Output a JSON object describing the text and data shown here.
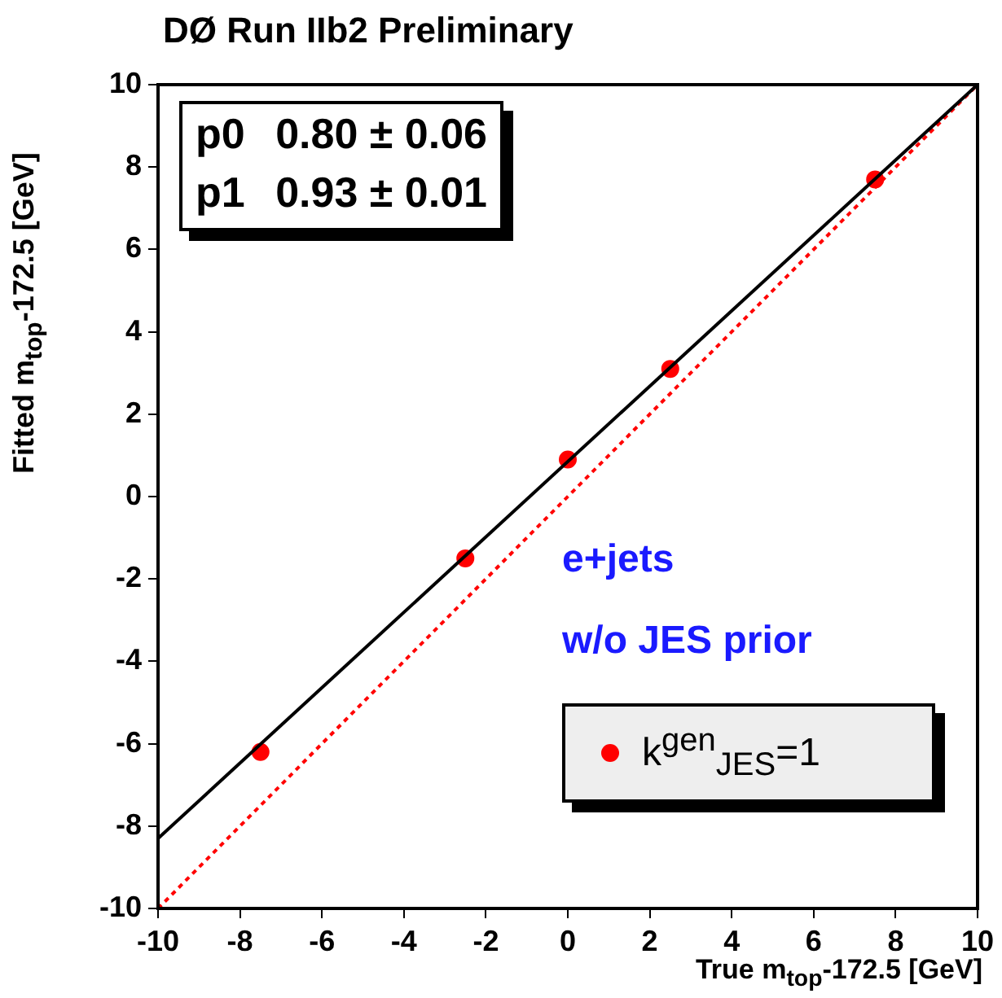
{
  "chart_data": {
    "type": "scatter",
    "title": "DØ Run IIb2 Preliminary",
    "xlabel": "True m$_{top}$-172.5 [GeV]",
    "ylabel": "Fitted m$_{top}$-172.5 [GeV]",
    "xlim": [
      -10,
      10
    ],
    "ylim": [
      -10,
      10
    ],
    "xticks": [
      -10,
      -8,
      -6,
      -4,
      -2,
      0,
      2,
      4,
      6,
      8,
      10
    ],
    "yticks": [
      -10,
      -8,
      -6,
      -4,
      -2,
      0,
      2,
      4,
      6,
      8,
      10
    ],
    "grid": false,
    "legend": "bottom right",
    "series": [
      {
        "type": "line",
        "color": "#000000",
        "x": [
          -10,
          10
        ],
        "values": [
          -8.3,
          10
        ],
        "marker": "none",
        "line_style": "solid"
      },
      {
        "type": "line",
        "color": "#ff0000",
        "x": [
          -10,
          10
        ],
        "values": [
          -10,
          10
        ],
        "marker": "none",
        "line_style": "dotted"
      },
      {
        "name": "k$^{gen}$$_{JES}$=1",
        "color": "#ff0000",
        "x": [
          -7.5,
          -2.5,
          0,
          2.5,
          7.5
        ],
        "values": [
          -6.2,
          -1.5,
          0.9,
          3.1,
          7.7
        ],
        "marker": "circle"
      }
    ],
    "annotations": [
      "p0",
      "0.80 ± 0.06",
      "p1",
      "0.93 ± 0.01",
      "e+jets",
      "w/o JES prior"
    ]
  }
}
